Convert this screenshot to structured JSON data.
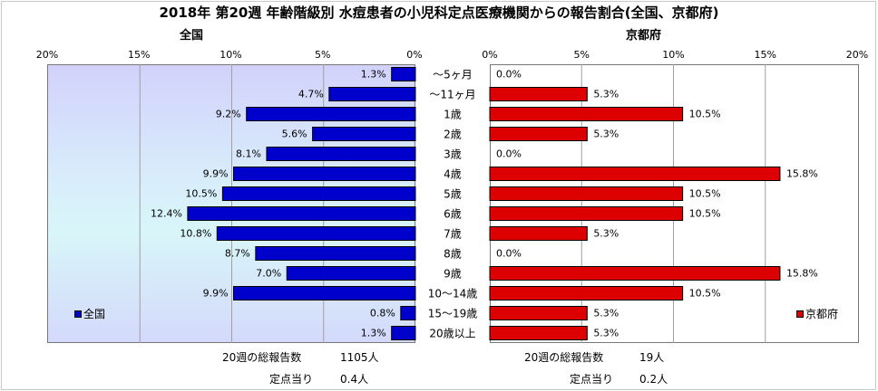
{
  "title": "2018年 第20週 年齢階級別 水痘患者の小児科定点医療機関からの報告割合(全国、京都府)",
  "chart_data": [
    {
      "type": "bar",
      "orientation": "horizontal",
      "direction": "right-to-left",
      "title": "全国",
      "legend": "全国",
      "legend_placement": "left",
      "color": "#0000cc",
      "xlim": [
        0,
        20
      ],
      "ticks": [
        "20%",
        "15%",
        "10%",
        "5%",
        "0%"
      ],
      "categories": [
        "～5ヶ月",
        "～11ヶ月",
        "1歳",
        "2歳",
        "3歳",
        "4歳",
        "5歳",
        "6歳",
        "7歳",
        "8歳",
        "9歳",
        "10～14歳",
        "15～19歳",
        "20歳以上"
      ],
      "values": [
        1.3,
        4.7,
        9.2,
        5.6,
        8.1,
        9.9,
        10.5,
        12.4,
        10.8,
        8.7,
        7.0,
        9.9,
        0.8,
        1.3
      ],
      "value_labels": [
        "1.3%",
        "4.7%",
        "9.2%",
        "5.6%",
        "8.1%",
        "9.9%",
        "10.5%",
        "12.4%",
        "10.8%",
        "8.7%",
        "7.0%",
        "9.9%",
        "0.8%",
        "1.3%"
      ]
    },
    {
      "type": "bar",
      "orientation": "horizontal",
      "direction": "left-to-right",
      "title": "京都府",
      "legend": "京都府",
      "legend_placement": "right",
      "color": "#dd0000",
      "xlim": [
        0,
        20
      ],
      "ticks": [
        "0%",
        "5%",
        "10%",
        "15%",
        "20%"
      ],
      "categories": [
        "～5ヶ月",
        "～11ヶ月",
        "1歳",
        "2歳",
        "3歳",
        "4歳",
        "5歳",
        "6歳",
        "7歳",
        "8歳",
        "9歳",
        "10～14歳",
        "15～19歳",
        "20歳以上"
      ],
      "values": [
        0.0,
        5.3,
        10.5,
        5.3,
        0.0,
        15.8,
        10.5,
        10.5,
        5.3,
        0.0,
        15.8,
        10.5,
        5.3,
        5.3
      ],
      "value_labels": [
        "0.0%",
        "5.3%",
        "10.5%",
        "5.3%",
        "0.0%",
        "15.8%",
        "10.5%",
        "10.5%",
        "5.3%",
        "0.0%",
        "15.8%",
        "10.5%",
        "5.3%",
        "5.3%"
      ]
    }
  ],
  "footer": {
    "national": {
      "total_label": "20週の総報告数",
      "total_value": "1105人",
      "per_label": "定点当り",
      "per_value": "0.4人"
    },
    "kyoto": {
      "total_label": "20週の総報告数",
      "total_value": "19人",
      "per_label": "定点当り",
      "per_value": "0.2人"
    }
  },
  "colors": {
    "plot_background": "#d4e8fb",
    "national_bar": "#0000cc",
    "kyoto_bar": "#dd0000"
  }
}
